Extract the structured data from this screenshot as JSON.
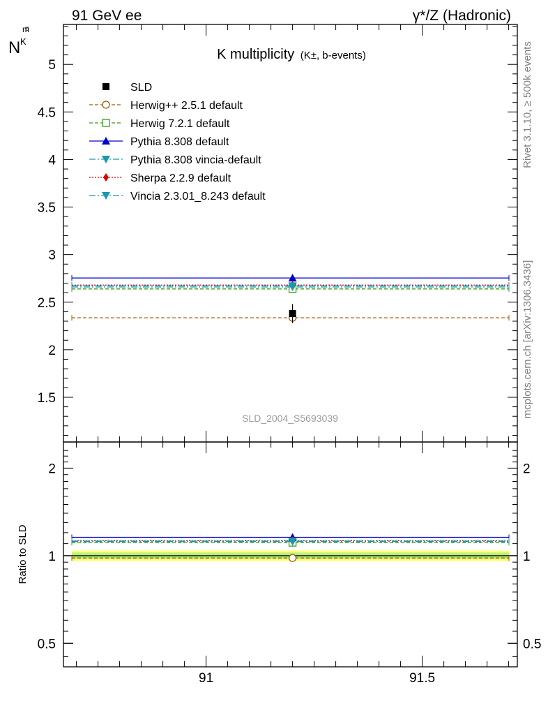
{
  "header": {
    "left": "91 GeV ee",
    "right": "γ*/Z (Hadronic)"
  },
  "side_labels": {
    "rivet": "Rivet 3.1.10, ≥ 500k events",
    "mcplots": "mcplots.cern.ch [arXiv:1306.3436]"
  },
  "chart_data": {
    "type": "line",
    "title_main": "K multiplicity",
    "title_sub": "(K±, b-events)",
    "ylabel_main": "N",
    "ylabel_sub": "K",
    "ylabel_sup": "p",
    "ylabel_subsub": "m",
    "ylabel_ratio": "Ratio to SLD",
    "watermark": "SLD_2004_S5693039",
    "x_range": [
      90.67,
      91.72
    ],
    "x_ticks": [
      91,
      91.5
    ],
    "x_tick_labels": [
      "91",
      "91.5"
    ],
    "point_x": 91.2,
    "main_ylim": [
      1.03,
      5.42
    ],
    "main_y_ticks": [
      1.5,
      2,
      2.5,
      3,
      3.5,
      4,
      4.5,
      5
    ],
    "main_y_tick_labels": [
      "1.5",
      "2",
      "2.5",
      "3",
      "3.5",
      "4",
      "4.5",
      "5"
    ],
    "ratio_ylim": [
      0.415,
      2.46
    ],
    "ratio_y_ticks": [
      0.5,
      1,
      2
    ],
    "ratio_y_tick_labels": [
      "0.5",
      "1",
      "2"
    ],
    "data": {
      "name": "SLD",
      "value": 2.38,
      "error": 0.1
    },
    "series": [
      {
        "name": "Herwig++ 2.5.1 default",
        "value": 2.336,
        "ratio": 0.982,
        "color": "#a05a00",
        "dash": "5,3",
        "marker": "circle-open"
      },
      {
        "name": "Herwig 7.2.1 default",
        "value": 2.639,
        "ratio": 1.109,
        "color": "#3a9a1a",
        "dash": "5,3",
        "marker": "square-open"
      },
      {
        "name": "Pythia 8.308 default",
        "value": 2.754,
        "ratio": 1.157,
        "color": "#0000cc",
        "dash": "",
        "marker": "triangle-up"
      },
      {
        "name": "Pythia 8.308 vincia-default",
        "value": 2.66,
        "ratio": 1.118,
        "color": "#1a9aaa",
        "dash": "9,3,2,3",
        "marker": "triangle-down"
      },
      {
        "name": "Sherpa 2.2.9 default",
        "value": 2.68,
        "ratio": 1.126,
        "color": "#e00000",
        "dash": "2,2",
        "marker": "diamond"
      },
      {
        "name": "Vincia 2.3.01_8.243 default",
        "value": 2.672,
        "ratio": 1.123,
        "color": "#1a9aaa",
        "dash": "9,3,2,3",
        "marker": "triangle-down"
      }
    ]
  }
}
